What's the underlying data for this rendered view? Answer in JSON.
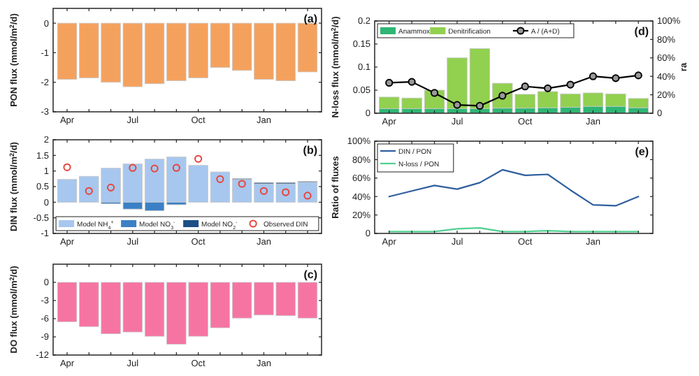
{
  "chart_data": [
    {
      "type": "bar",
      "ylabel": "PON flux (mmol/m$^{2}$/d)",
      "annotations": [
        "(a)"
      ],
      "categories": [
        "Apr",
        null,
        null,
        "Jul",
        null,
        null,
        "Oct",
        null,
        null,
        "Jan",
        null,
        null
      ],
      "series": [
        {
          "color": "#f5a15e",
          "values": [
            -1.9,
            -1.85,
            -2.0,
            -2.15,
            -2.05,
            -1.95,
            -1.85,
            -1.5,
            -1.6,
            -1.9,
            -1.95,
            -1.65
          ]
        }
      ],
      "ylim": [
        -3,
        0.5
      ],
      "yticks": [
        -3,
        -2,
        -1,
        0
      ],
      "grid": false,
      "legend": false
    },
    {
      "type": "bar",
      "ylabel": "DIN flux (mmol/m$^{2}$/d)",
      "annotations": [
        "(b)"
      ],
      "stacked": true,
      "categories": [
        "Apr",
        null,
        null,
        "Jul",
        null,
        null,
        "Oct",
        null,
        null,
        "Jan",
        null,
        null
      ],
      "series": [
        {
          "name": "Model NH$_{4}$$^{+}$",
          "color": "#a7c7ee",
          "values": [
            0.73,
            0.83,
            1.09,
            1.23,
            1.38,
            1.45,
            1.18,
            0.97,
            0.73,
            0.59,
            0.59,
            0.64
          ]
        },
        {
          "name": "Model NO$_{3}$$^{-}$",
          "color": "#3b80c6",
          "values": [
            0,
            0,
            -0.05,
            -0.22,
            -0.27,
            -0.08,
            0,
            0,
            0,
            0,
            0,
            0
          ]
        },
        {
          "name": "Model NO$_{2}$$^{-}$",
          "color": "#1d4f86",
          "values": [
            0,
            0,
            0,
            0,
            0,
            0,
            null,
            null,
            0.03,
            0.04,
            0.04,
            0.03
          ]
        },
        {
          "name": "Observed DIN",
          "type": "scatter",
          "marker": "circle",
          "color": "#e8433a",
          "values": [
            1.12,
            0.36,
            0.47,
            1.1,
            1.08,
            1.1,
            1.39,
            0.74,
            0.59,
            0.36,
            0.32,
            0.21
          ]
        }
      ],
      "ylim": [
        -1,
        2
      ],
      "yticks": [
        -1,
        -0.5,
        0,
        0.5,
        1,
        1.5,
        2
      ],
      "grid": false,
      "legend": "bottom"
    },
    {
      "type": "bar",
      "ylabel": "DO flux (mmol/m$^{2}$/d)",
      "annotations": [
        "(c)"
      ],
      "categories": [
        "Apr",
        null,
        null,
        "Jul",
        null,
        null,
        "Oct",
        null,
        null,
        "Jan",
        null,
        null
      ],
      "series": [
        {
          "color": "#f674a2",
          "values": [
            -6.5,
            -7.3,
            -8.5,
            -8.2,
            -8.9,
            -10.2,
            -8.9,
            -7.5,
            -5.9,
            -5.4,
            -5.5,
            -5.9
          ]
        }
      ],
      "ylim": [
        -12,
        3
      ],
      "yticks": [
        -12,
        -9,
        -6,
        -3,
        0
      ],
      "grid": false,
      "legend": false
    },
    {
      "type": "bar",
      "ylabel": "N-loss flux (mmol/m$^{2}$/d)",
      "y2label": "ra",
      "annotations": [
        "(d)"
      ],
      "stacked": true,
      "categories": [
        "Apr",
        null,
        null,
        "Jul",
        null,
        null,
        "Oct",
        null,
        null,
        "Jan",
        null,
        null
      ],
      "series": [
        {
          "name": "Anammox",
          "color": "#2db674",
          "values": [
            0.01,
            0.01,
            0.01,
            0.01,
            0.01,
            0.011,
            0.011,
            0.012,
            0.013,
            0.015,
            0.015,
            0.012
          ]
        },
        {
          "name": "Denitrification",
          "color": "#92d050",
          "values": [
            0.025,
            0.023,
            0.04,
            0.11,
            0.13,
            0.054,
            0.03,
            0.035,
            0.029,
            0.029,
            0.027,
            0.02
          ]
        },
        {
          "name": "A / (A+D)",
          "type": "line",
          "axis": "y2",
          "marker": "circle",
          "color": "#000000",
          "values": [
            33,
            34,
            22,
            9,
            8,
            19,
            29,
            27,
            31,
            40,
            38,
            41
          ]
        }
      ],
      "ylim": [
        0,
        0.2
      ],
      "yticks": [
        0,
        0.05,
        0.1,
        0.15,
        0.2
      ],
      "y2lim": [
        0,
        100
      ],
      "y2ticks": [
        0,
        {
          "value": 20,
          "label": "20%"
        },
        {
          "value": 40,
          "label": "40%"
        },
        {
          "value": 60,
          "label": "60%"
        },
        {
          "value": 80,
          "label": "80%"
        },
        {
          "value": 100,
          "label": "100%"
        }
      ],
      "grid": false,
      "legend": "top left"
    },
    {
      "type": "line",
      "ylabel": "Ratio of fluxes",
      "annotations": [
        "(e)"
      ],
      "categories": [
        "Apr",
        null,
        null,
        "Jul",
        null,
        null,
        "Oct",
        null,
        null,
        "Jan",
        null,
        null
      ],
      "series": [
        {
          "name": "DIN / PON",
          "color": "#2f5f9e",
          "values": [
            40,
            46,
            52,
            48,
            55,
            69,
            63,
            64,
            47,
            31,
            30,
            40
          ]
        },
        {
          "name": "N-loss / PON",
          "color": "#4fcf90",
          "values": [
            2,
            2,
            2,
            5,
            6,
            2,
            2,
            3,
            2,
            2,
            2,
            2
          ]
        }
      ],
      "ylim": [
        0,
        100
      ],
      "yticks": [
        0,
        {
          "value": 20,
          "label": "20%"
        },
        {
          "value": 40,
          "label": "40%"
        },
        {
          "value": 60,
          "label": "60%"
        },
        {
          "value": 80,
          "label": "80%"
        },
        {
          "value": 100,
          "label": "100%"
        }
      ],
      "grid": false,
      "legend": "top left"
    }
  ]
}
